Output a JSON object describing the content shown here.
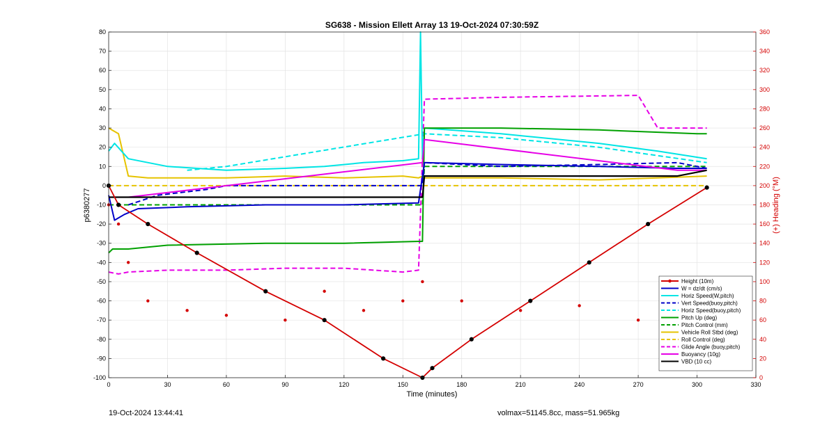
{
  "chart_data": {
    "type": "line",
    "title": "SG638 - Mission Ellett Array 13 19-Oct-2024 07:30:59Z",
    "xlabel": "Time (minutes)",
    "ylabel": "p6380277",
    "y2label": "(+) Heading (°M)",
    "xlim": [
      0,
      330
    ],
    "ylim": [
      -100,
      80
    ],
    "y2lim": [
      0,
      360
    ],
    "xticks": [
      "0",
      "30",
      "60",
      "90",
      "120",
      "150",
      "180",
      "210",
      "240",
      "270",
      "300",
      "330"
    ],
    "yticks": [
      "80",
      "70",
      "60",
      "50",
      "40",
      "30",
      "20",
      "10",
      "0",
      "-10",
      "-20",
      "-30",
      "-40",
      "-50",
      "-60",
      "-70",
      "-80",
      "-90",
      "-100"
    ],
    "y2ticks": [
      "360",
      "340",
      "320",
      "300",
      "280",
      "260",
      "240",
      "220",
      "200",
      "180",
      "160",
      "140",
      "120",
      "100",
      "80",
      "60",
      "40",
      "20",
      "0"
    ],
    "grid": true,
    "legend_position": "bottom-right",
    "colors": {
      "height": "#d40000",
      "w": "#0000c8",
      "horiz": "#00e5e5",
      "vert": "#0000c8",
      "pitch": "#00a000",
      "roll": "#e6c300",
      "glide": "#e600e6",
      "buoy": "#e600e6",
      "vbd": "#000000",
      "heading": "#d40000"
    },
    "legend": [
      {
        "label": "Height (10m)",
        "key": "height",
        "style": "marker"
      },
      {
        "label": "W = dz/dt (cm/s)",
        "key": "w",
        "style": "solid"
      },
      {
        "label": "Horiz Speed(W,pitch)",
        "key": "horiz",
        "style": "solid"
      },
      {
        "label": "Vert Speed(buoy,pitch)",
        "key": "vert",
        "style": "dash"
      },
      {
        "label": "Horiz Speed(buoy,pitch)",
        "key": "horiz",
        "style": "dash"
      },
      {
        "label": "Pitch Up (deg)",
        "key": "pitch",
        "style": "solid"
      },
      {
        "label": "Pitch Control (mm)",
        "key": "pitch",
        "style": "dash"
      },
      {
        "label": "Vehicle Roll Stbd (deg)",
        "key": "roll",
        "style": "solid"
      },
      {
        "label": "Roll Control (deg)",
        "key": "roll",
        "style": "dash"
      },
      {
        "label": "Glide Angle (buoy,pitch)",
        "key": "glide",
        "style": "dash"
      },
      {
        "label": "Buoyancy (10g)",
        "key": "buoy",
        "style": "solid"
      },
      {
        "label": "VBD (10 cc)",
        "key": "vbd",
        "style": "solid"
      }
    ],
    "series": {
      "height": {
        "x": [
          0,
          5,
          20,
          45,
          80,
          110,
          140,
          160,
          165,
          185,
          215,
          245,
          275,
          305
        ],
        "y": [
          0,
          -10,
          -20,
          -35,
          -55,
          -70,
          -90,
          -100,
          -95,
          -80,
          -60,
          -40,
          -20,
          -1
        ]
      },
      "w": {
        "x": [
          0,
          3,
          8,
          15,
          40,
          80,
          120,
          158,
          160,
          161,
          200,
          250,
          290,
          305
        ],
        "y": [
          -5,
          -18,
          -15,
          -12,
          -11,
          -10,
          -10,
          -9,
          5,
          12,
          11,
          10,
          9,
          9
        ]
      },
      "horiz": {
        "x": [
          0,
          3,
          10,
          30,
          60,
          90,
          110,
          130,
          150,
          158,
          159,
          160,
          161,
          200,
          250,
          280,
          305
        ],
        "y": [
          18,
          22,
          14,
          10,
          8,
          9,
          10,
          12,
          13,
          14,
          80,
          14,
          30,
          27,
          22,
          18,
          14
        ]
      },
      "vert": {
        "x": [
          10,
          25,
          50,
          60,
          160,
          161,
          200,
          250,
          290,
          305
        ],
        "y": [
          -10,
          -5,
          -2,
          0,
          0,
          12,
          10,
          11,
          12,
          9
        ]
      },
      "horiz_buoy": {
        "x": [
          40,
          60,
          161,
          200,
          250,
          305
        ],
        "y": [
          8,
          10,
          27,
          25,
          20,
          12
        ]
      },
      "pitch_up": {
        "x": [
          0,
          2,
          10,
          30,
          80,
          120,
          158,
          160,
          161,
          200,
          250,
          300,
          305
        ],
        "y": [
          -35,
          -33,
          -33,
          -31,
          -30,
          -30,
          -29,
          -29,
          30,
          30,
          29,
          27,
          27
        ]
      },
      "pitch_ctrl": {
        "x": [
          0,
          2,
          160,
          161,
          305
        ],
        "y": [
          -10,
          -10,
          -10,
          10,
          10
        ]
      },
      "roll": {
        "x": [
          0,
          5,
          10,
          20,
          30,
          60,
          90,
          120,
          150,
          158,
          160,
          161,
          200,
          250,
          280,
          305
        ],
        "y": [
          30,
          27,
          5,
          4,
          4,
          4,
          5,
          4,
          5,
          4,
          5,
          4,
          4,
          3,
          4,
          5
        ]
      },
      "roll_ctrl": {
        "x": [
          0,
          160,
          161,
          305
        ],
        "y": [
          0,
          0,
          0,
          0
        ]
      },
      "glide": {
        "x": [
          0,
          5,
          10,
          30,
          60,
          90,
          120,
          150,
          158,
          161,
          200,
          270,
          280,
          305
        ],
        "y": [
          -45,
          -46,
          -45,
          -44,
          -44,
          -43,
          -43,
          -45,
          -44,
          45,
          46,
          47,
          30,
          30
        ]
      },
      "buoyancy": {
        "x": [
          10,
          160,
          161,
          290,
          305
        ],
        "y": [
          -6,
          12,
          24,
          8,
          8
        ]
      },
      "vbd": {
        "x": [
          0,
          2,
          160,
          161,
          290,
          305
        ],
        "y": [
          -6,
          -6,
          -6,
          5,
          5,
          8
        ]
      },
      "heading": {
        "x": [
          0,
          5,
          10,
          20,
          40,
          60,
          90,
          110,
          130,
          150,
          160,
          180,
          210,
          240,
          270,
          300
        ],
        "y": [
          180,
          160,
          120,
          80,
          70,
          65,
          60,
          90,
          70,
          80,
          100,
          80,
          70,
          75,
          60,
          50
        ]
      }
    }
  },
  "footer": {
    "left": "19-Oct-2024 13:44:41",
    "right": "volmax=51145.8cc, mass=51.965kg"
  }
}
